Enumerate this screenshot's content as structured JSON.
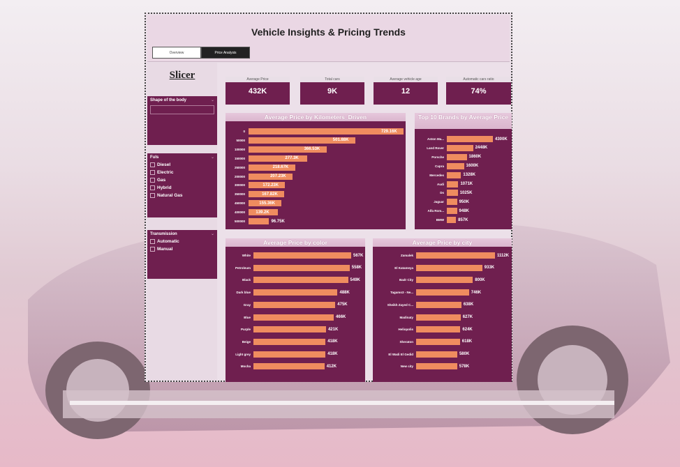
{
  "report_title": "Vehicle Insights & Pricing Trends",
  "tabs": [
    "Overview",
    "Price Analysis"
  ],
  "slicer": {
    "title": "Slicer",
    "body_shape": {
      "label": "Shape of the body"
    },
    "fuels": {
      "label": "Fuls",
      "options": [
        "Diesel",
        "Electric",
        "Gas",
        "Hybrid",
        "Natural Gas"
      ]
    },
    "transmission": {
      "label": "Transmission",
      "options": [
        "Automatic",
        "Manual"
      ]
    }
  },
  "kpis": [
    {
      "label": "Average Price",
      "value": "432K"
    },
    {
      "label": "Total cars",
      "value": "9K"
    },
    {
      "label": "Average vehicle age",
      "value": "12"
    },
    {
      "label": "Automatic cars ratio",
      "value": "74%"
    }
  ],
  "colors": {
    "bar": "#ef8c5f",
    "panel": "#6f1f4f"
  },
  "chart_data": [
    {
      "type": "bar",
      "title": "Average Price by Kilometers_Driven",
      "categories": [
        "0",
        "50000",
        "100000",
        "150000",
        "250000",
        "200000",
        "300000",
        "350000",
        "450000",
        "400000",
        "500000"
      ],
      "values": [
        729.16,
        501.88,
        366.53,
        277.3,
        218.67,
        207.23,
        172.23,
        167.82,
        155.36,
        139.2,
        96.75
      ],
      "labels": [
        "729.16K",
        "501.88K",
        "366.53K",
        "277.3K",
        "218.67K",
        "207.23K",
        "172.23K",
        "167.82K",
        "155.36K",
        "139.2K",
        "96.75K"
      ]
    },
    {
      "type": "bar",
      "title": "Top 10 Brands by Average Price",
      "categories": [
        "Aston Ma...",
        "Land Rover",
        "Porsche",
        "Cupra",
        "Mercedes",
        "Audi",
        "Ds",
        "Jaguar",
        "Alfa Rom...",
        "BMW"
      ],
      "values": [
        4300,
        2448,
        1860,
        1600,
        1328,
        1071,
        1025,
        950,
        948,
        857
      ],
      "labels": [
        "4300K",
        "2448K",
        "1860K",
        "1600K",
        "1328K",
        "1071K",
        "1025K",
        "950K",
        "948K",
        "857K"
      ]
    },
    {
      "type": "bar",
      "title": "Average Price by color",
      "categories": [
        "White",
        "Petroleum",
        "Black",
        "Dark blue",
        "Gray",
        "Blue",
        "Purple",
        "Beige",
        "Light grey",
        "Mocha"
      ],
      "values": [
        567,
        558,
        549,
        488,
        475,
        466,
        421,
        418,
        418,
        412
      ],
      "labels": [
        "567K",
        "558K",
        "549K",
        "488K",
        "475K",
        "466K",
        "421K",
        "418K",
        "418K",
        "412K"
      ]
    },
    {
      "type": "bar",
      "title": "Average Price by city",
      "categories": [
        "Zamalek",
        "El Katameya",
        "Badr City",
        "Tagamo3 - Ne...",
        "Sheikh Zayed C...",
        "Madinaty",
        "Heliopolis",
        "Sheraton",
        "El Wadi El Gedid",
        "New city"
      ],
      "values": [
        1112,
        933,
        800,
        746,
        638,
        627,
        624,
        618,
        580,
        578
      ],
      "labels": [
        "1112K",
        "933K",
        "800K",
        "746K",
        "638K",
        "627K",
        "624K",
        "618K",
        "580K",
        "578K"
      ]
    }
  ]
}
